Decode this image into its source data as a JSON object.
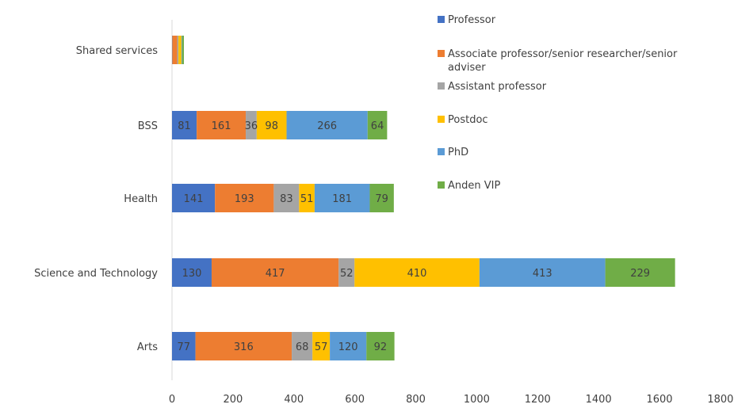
{
  "chart_data": {
    "type": "bar",
    "orientation": "horizontal",
    "stacked": true,
    "categories": [
      "Shared services",
      "BSS",
      "Health",
      "Science and Technology",
      "Arts"
    ],
    "series": [
      {
        "name": "Professor",
        "color": "#4472C4",
        "values": [
          1,
          81,
          141,
          130,
          77
        ]
      },
      {
        "name": "Associate professor/senior researcher/senior adviser",
        "color": "#ED7D31",
        "values": [
          16,
          161,
          193,
          417,
          316
        ]
      },
      {
        "name": "Assistant professor",
        "color": "#A5A5A5",
        "values": [
          4,
          36,
          83,
          52,
          68
        ]
      },
      {
        "name": "Postdoc",
        "color": "#FFC000",
        "values": [
          10,
          98,
          51,
          410,
          57
        ]
      },
      {
        "name": "PhD",
        "color": "#5B9BD5",
        "values": [
          2,
          266,
          181,
          413,
          120
        ]
      },
      {
        "name": "Anden VIP",
        "color": "#70AD47",
        "values": [
          6,
          64,
          79,
          229,
          92
        ]
      }
    ],
    "data_labels": {
      "Shared services": [
        null,
        null,
        null,
        null,
        null,
        null
      ],
      "BSS": [
        "81",
        "161",
        "36",
        "98",
        "266",
        "64"
      ],
      "Health": [
        "141",
        "193",
        "83",
        "51",
        "181",
        "79"
      ],
      "Science and Technology": [
        "130",
        "417",
        "52",
        "410",
        "413",
        "229"
      ],
      "Arts": [
        "77",
        "316",
        "68",
        "57",
        "120",
        "92"
      ]
    },
    "x_ticks": [
      "0",
      "200",
      "400",
      "600",
      "800",
      "1000",
      "1200",
      "1400",
      "1600",
      "1800"
    ],
    "xlim": [
      0,
      1800
    ],
    "title": "",
    "xlabel": "",
    "ylabel": "",
    "grid": false,
    "legend_position": "right"
  }
}
